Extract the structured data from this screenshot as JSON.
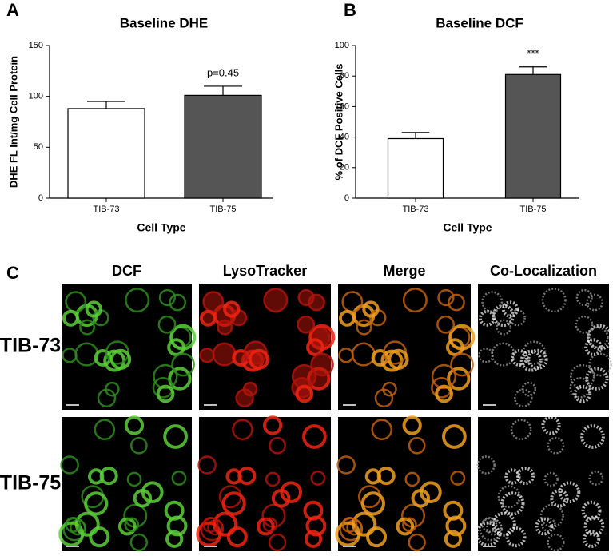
{
  "chart_data": [
    {
      "type": "bar",
      "panel_label": "A",
      "title": "Baseline DHE",
      "y_label": "DHE FL Int/mg Cell Protein",
      "x_label": "Cell Type",
      "categories": [
        "TIB-73",
        "TIB-75"
      ],
      "values": [
        88,
        101
      ],
      "errors": [
        7,
        9
      ],
      "colors": [
        "#ffffff",
        "#555555"
      ],
      "annotation": "p=0.45",
      "ylim": [
        0,
        150
      ],
      "yticks": [
        0,
        50,
        100,
        150
      ]
    },
    {
      "type": "bar",
      "panel_label": "B",
      "title": "Baseline DCF",
      "y_label": "% of DCF Positive Cells",
      "x_label": "Cell Type",
      "categories": [
        "TIB-73",
        "TIB-75"
      ],
      "values": [
        39,
        81
      ],
      "errors": [
        4,
        5
      ],
      "colors": [
        "#ffffff",
        "#555555"
      ],
      "annotation": "***",
      "ylim": [
        0,
        100
      ],
      "yticks": [
        0,
        20,
        40,
        60,
        80,
        100
      ]
    }
  ],
  "panel_c": {
    "label": "C",
    "columns": [
      "DCF",
      "LysoTracker",
      "Merge",
      "Co-Localization"
    ],
    "rows": [
      "TIB-73",
      "TIB-75"
    ]
  }
}
